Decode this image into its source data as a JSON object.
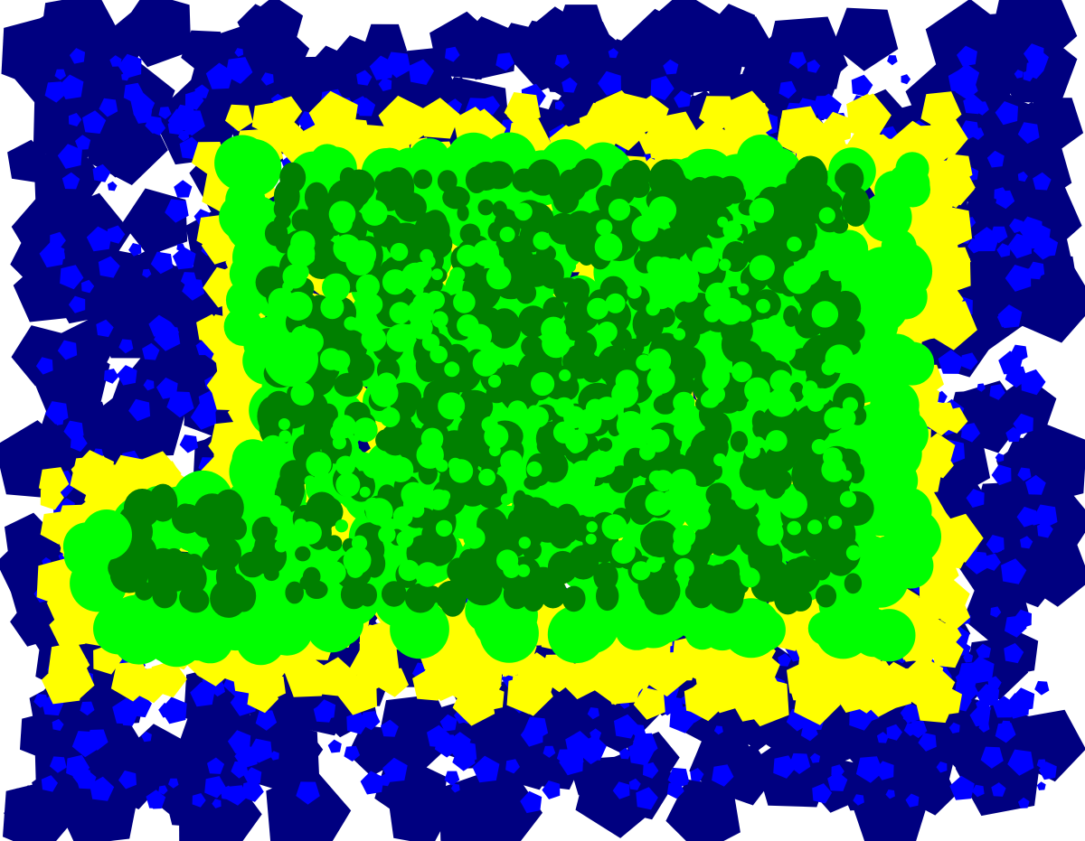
{
  "palette": {
    "background": "#ffffff",
    "deep_blue": "#000080",
    "blue": "#0000ff",
    "yellow": "#ffff00",
    "bright_green": "#00ff00",
    "dark_green": "#008000"
  },
  "shapes": {
    "outer_region": "pentagons",
    "inner_region": "circles"
  },
  "seed": 7
}
